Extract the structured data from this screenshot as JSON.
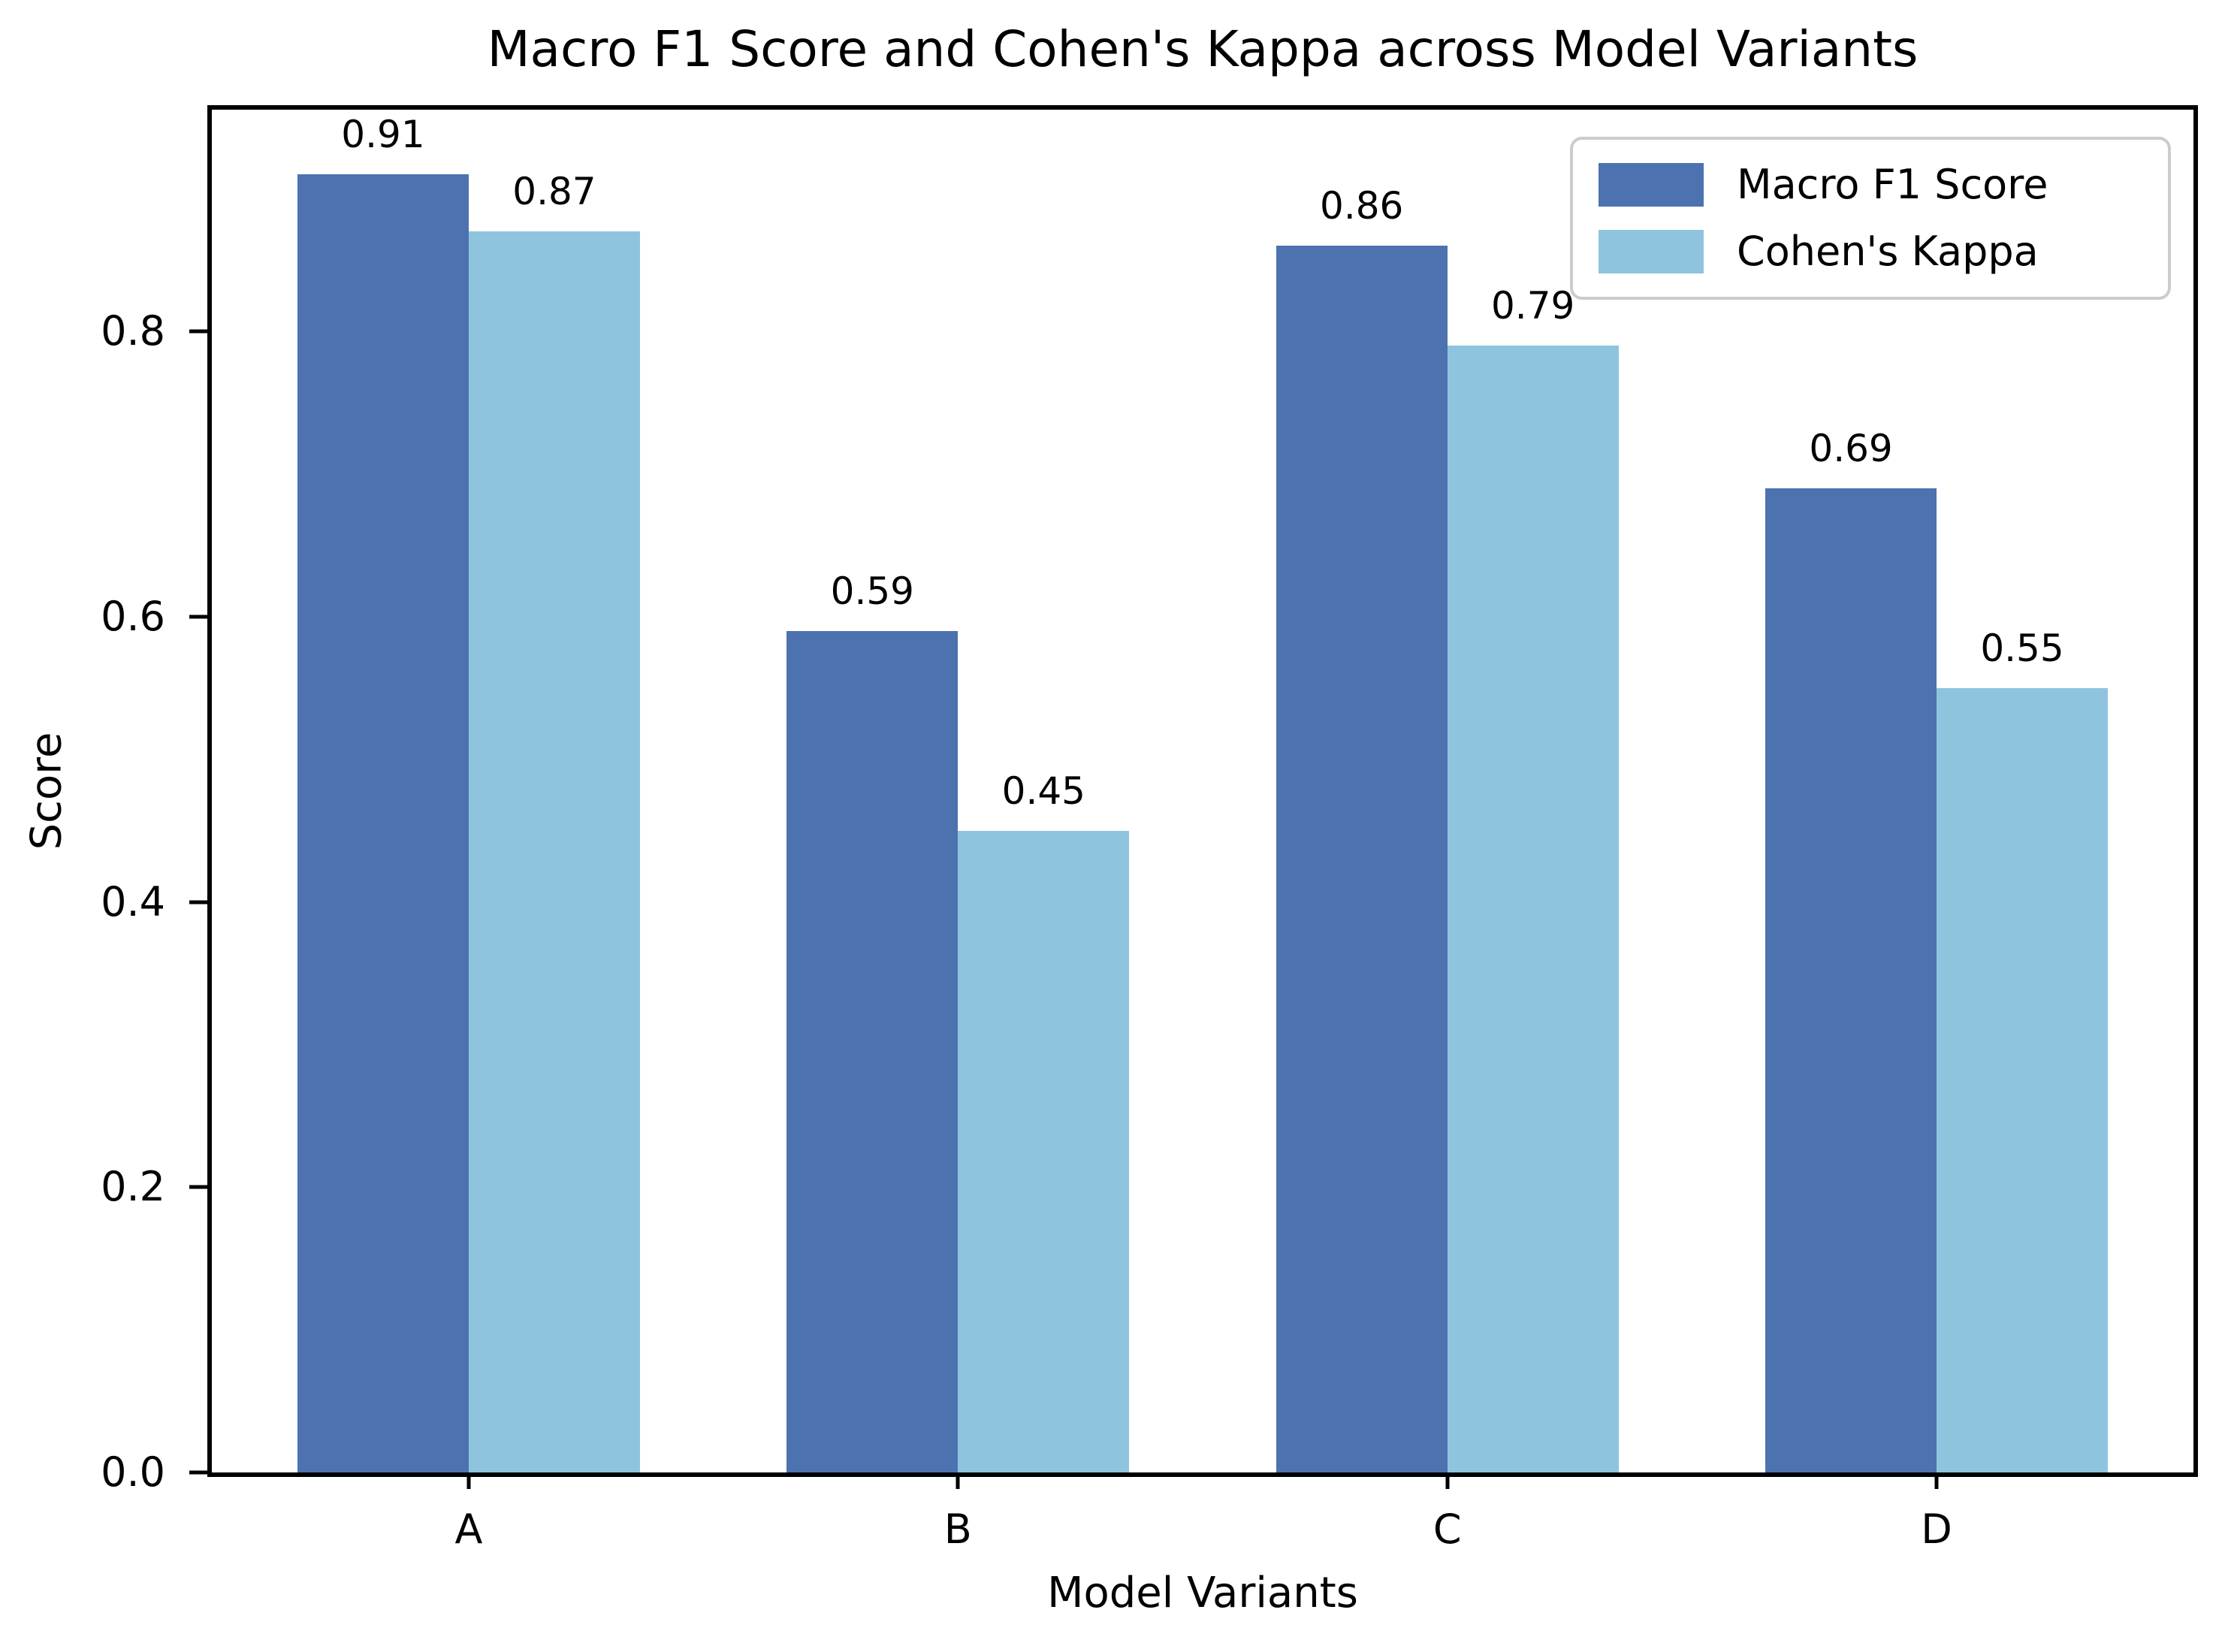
{
  "chart_data": {
    "type": "bar",
    "title": "Macro F1 Score and Cohen's Kappa across Model Variants",
    "xlabel": "Model Variants",
    "ylabel": "Score",
    "categories": [
      "A",
      "B",
      "C",
      "D"
    ],
    "series": [
      {
        "name": "Macro F1 Score",
        "color": "#4C72B0",
        "values": [
          0.91,
          0.59,
          0.86,
          0.69
        ]
      },
      {
        "name": "Cohen's Kappa",
        "color": "#8FC4DE",
        "values": [
          0.87,
          0.45,
          0.79,
          0.55
        ]
      }
    ],
    "value_labels": [
      [
        "0.91",
        "0.59",
        "0.86",
        "0.69"
      ],
      [
        "0.87",
        "0.45",
        "0.79",
        "0.55"
      ]
    ],
    "ylim": [
      0,
      0.9555
    ],
    "yticks": [
      {
        "value": 0.0,
        "label": "0.0"
      },
      {
        "value": 0.2,
        "label": "0.2"
      },
      {
        "value": 0.4,
        "label": "0.4"
      },
      {
        "value": 0.6,
        "label": "0.6"
      },
      {
        "value": 0.8,
        "label": "0.8"
      }
    ],
    "xlim": [
      -0.525,
      3.525
    ],
    "bar_width_axis_units": 0.35,
    "grid": false,
    "legend_position": "upper right",
    "background_color": "#ffffff",
    "spine_color": "#000000"
  }
}
